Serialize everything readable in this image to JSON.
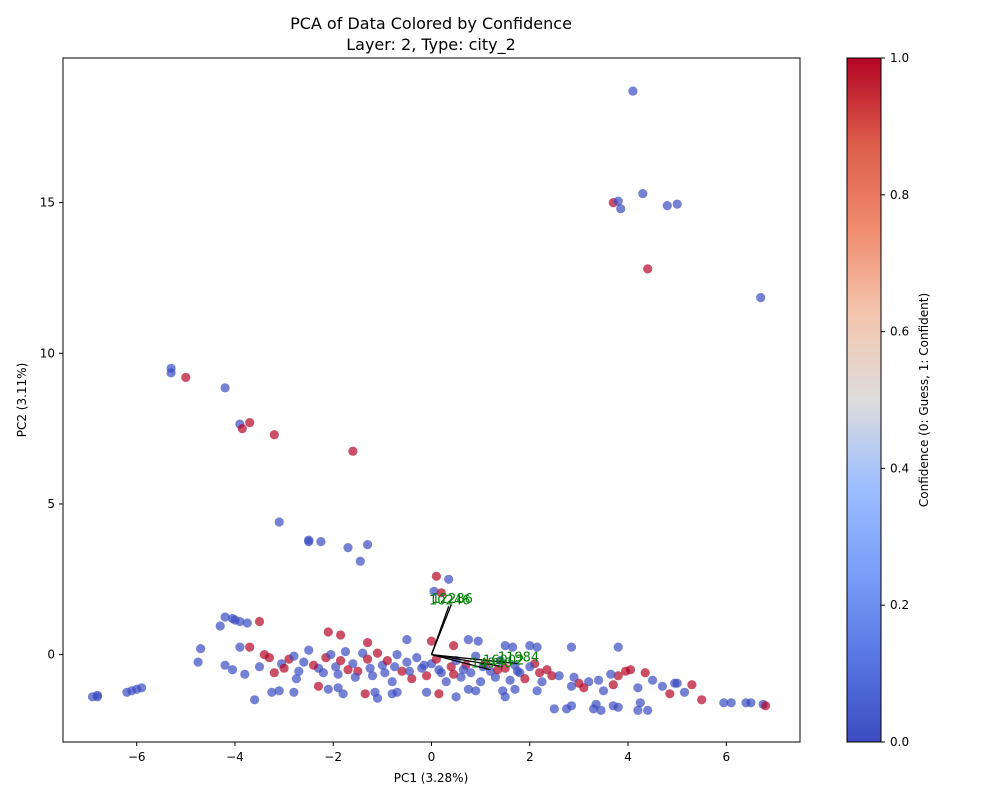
{
  "chart_data": {
    "type": "scatter",
    "title": "PCA of Data Colored by Confidence",
    "subtitle": "Layer: 2, Type: city_2",
    "xlabel": "PC1 (3.28%)",
    "ylabel": "PC2 (3.11%)",
    "xlim": [
      -7.5,
      7.5
    ],
    "ylim": [
      -2.9,
      19.8
    ],
    "xticks": [
      -6,
      -4,
      -2,
      0,
      2,
      4,
      6
    ],
    "xtick_labels": [
      "−6",
      "−4",
      "−2",
      "0",
      "2",
      "4",
      "6"
    ],
    "yticks": [
      0,
      5,
      10,
      15
    ],
    "ytick_labels": [
      "0",
      "5",
      "10",
      "15"
    ],
    "grid": false,
    "colorbar": {
      "label": "Confidence (0: Guess, 1: Confident)",
      "range": [
        0,
        1
      ],
      "ticks": [
        0.0,
        0.2,
        0.4,
        0.6,
        0.8,
        1.0
      ],
      "tick_labels": [
        "0.0",
        "0.2",
        "0.4",
        "0.6",
        "0.8",
        "1.0"
      ],
      "colormap": "coolwarm",
      "low_color": "#3b4cc0",
      "high_color": "#b40426"
    },
    "points": [
      {
        "x": 4.1,
        "y": 18.7,
        "c": 0
      },
      {
        "x": 4.3,
        "y": 15.3,
        "c": 0
      },
      {
        "x": 3.7,
        "y": 15.0,
        "c": 1
      },
      {
        "x": 3.8,
        "y": 15.05,
        "c": 0
      },
      {
        "x": 3.85,
        "y": 14.8,
        "c": 0
      },
      {
        "x": 4.8,
        "y": 14.9,
        "c": 0
      },
      {
        "x": 5.0,
        "y": 14.95,
        "c": 0
      },
      {
        "x": 4.4,
        "y": 12.8,
        "c": 1
      },
      {
        "x": 6.7,
        "y": 11.85,
        "c": 0
      },
      {
        "x": -5.3,
        "y": 9.5,
        "c": 0
      },
      {
        "x": -5.3,
        "y": 9.35,
        "c": 0
      },
      {
        "x": -5.0,
        "y": 9.2,
        "c": 1
      },
      {
        "x": -4.2,
        "y": 8.85,
        "c": 0
      },
      {
        "x": -3.9,
        "y": 7.65,
        "c": 0
      },
      {
        "x": -3.85,
        "y": 7.5,
        "c": 1
      },
      {
        "x": -3.7,
        "y": 7.7,
        "c": 1
      },
      {
        "x": -3.2,
        "y": 7.3,
        "c": 1
      },
      {
        "x": -1.6,
        "y": 6.75,
        "c": 1
      },
      {
        "x": -3.1,
        "y": 4.4,
        "c": 0
      },
      {
        "x": -2.5,
        "y": 3.8,
        "c": 0
      },
      {
        "x": -2.5,
        "y": 3.75,
        "c": 0
      },
      {
        "x": -2.25,
        "y": 3.75,
        "c": 0
      },
      {
        "x": -1.7,
        "y": 3.55,
        "c": 0
      },
      {
        "x": -1.3,
        "y": 3.65,
        "c": 0
      },
      {
        "x": -1.45,
        "y": 3.1,
        "c": 0
      },
      {
        "x": 0.1,
        "y": 2.6,
        "c": 1
      },
      {
        "x": 0.35,
        "y": 2.5,
        "c": 0
      },
      {
        "x": 0.05,
        "y": 2.1,
        "c": 0
      },
      {
        "x": 0.2,
        "y": 2.05,
        "c": 1
      },
      {
        "x": -4.2,
        "y": 1.25,
        "c": 0
      },
      {
        "x": -4.05,
        "y": 1.2,
        "c": 0
      },
      {
        "x": -4.0,
        "y": 1.15,
        "c": 0
      },
      {
        "x": -3.9,
        "y": 1.1,
        "c": 0
      },
      {
        "x": -3.75,
        "y": 1.05,
        "c": 0
      },
      {
        "x": -4.3,
        "y": 0.95,
        "c": 0
      },
      {
        "x": -3.5,
        "y": 1.1,
        "c": 1
      },
      {
        "x": -2.1,
        "y": 0.75,
        "c": 1
      },
      {
        "x": -1.85,
        "y": 0.65,
        "c": 1
      },
      {
        "x": -1.3,
        "y": 0.4,
        "c": 1
      },
      {
        "x": -0.5,
        "y": 0.5,
        "c": 0
      },
      {
        "x": 0.0,
        "y": 0.45,
        "c": 1
      },
      {
        "x": 0.45,
        "y": 0.3,
        "c": 1
      },
      {
        "x": 0.75,
        "y": 0.5,
        "c": 0
      },
      {
        "x": 0.95,
        "y": 0.45,
        "c": 0
      },
      {
        "x": 1.5,
        "y": 0.3,
        "c": 0
      },
      {
        "x": 1.65,
        "y": 0.25,
        "c": 0
      },
      {
        "x": 2.0,
        "y": 0.3,
        "c": 0
      },
      {
        "x": 2.15,
        "y": 0.25,
        "c": 0
      },
      {
        "x": 2.85,
        "y": 0.25,
        "c": 0
      },
      {
        "x": 3.8,
        "y": 0.25,
        "c": 0
      },
      {
        "x": -4.7,
        "y": 0.2,
        "c": 0
      },
      {
        "x": -4.75,
        "y": -0.25,
        "c": 0
      },
      {
        "x": -4.2,
        "y": -0.35,
        "c": 0
      },
      {
        "x": -4.05,
        "y": -0.5,
        "c": 0
      },
      {
        "x": -3.9,
        "y": 0.25,
        "c": 0
      },
      {
        "x": -3.7,
        "y": 0.25,
        "c": 1
      },
      {
        "x": -3.8,
        "y": -0.65,
        "c": 0
      },
      {
        "x": -3.6,
        "y": -1.5,
        "c": 0
      },
      {
        "x": -3.25,
        "y": -1.25,
        "c": 0
      },
      {
        "x": -3.1,
        "y": -1.2,
        "c": 0
      },
      {
        "x": -2.8,
        "y": -1.25,
        "c": 0
      },
      {
        "x": -2.75,
        "y": -0.8,
        "c": 0
      },
      {
        "x": -2.3,
        "y": -1.05,
        "c": 1
      },
      {
        "x": -2.1,
        "y": -1.15,
        "c": 0
      },
      {
        "x": -1.9,
        "y": -1.1,
        "c": 0
      },
      {
        "x": -1.8,
        "y": -1.3,
        "c": 0
      },
      {
        "x": -1.35,
        "y": -1.3,
        "c": 1
      },
      {
        "x": -1.15,
        "y": -1.25,
        "c": 0
      },
      {
        "x": -1.1,
        "y": -1.45,
        "c": 0
      },
      {
        "x": -0.8,
        "y": -1.3,
        "c": 0
      },
      {
        "x": -0.7,
        "y": -1.25,
        "c": 0
      },
      {
        "x": -0.1,
        "y": -1.25,
        "c": 0
      },
      {
        "x": 0.15,
        "y": -1.3,
        "c": 1
      },
      {
        "x": 0.5,
        "y": -1.4,
        "c": 0
      },
      {
        "x": 0.75,
        "y": -1.15,
        "c": 0
      },
      {
        "x": 0.9,
        "y": -1.2,
        "c": 0
      },
      {
        "x": 1.45,
        "y": -1.2,
        "c": 0
      },
      {
        "x": 1.5,
        "y": -1.4,
        "c": 0
      },
      {
        "x": 1.7,
        "y": -1.15,
        "c": 0
      },
      {
        "x": 2.15,
        "y": -1.2,
        "c": 0
      },
      {
        "x": 2.5,
        "y": -1.8,
        "c": 0
      },
      {
        "x": 2.75,
        "y": -1.8,
        "c": 0
      },
      {
        "x": 2.85,
        "y": -1.7,
        "c": 0
      },
      {
        "x": 3.3,
        "y": -1.8,
        "c": 0
      },
      {
        "x": 3.35,
        "y": -1.65,
        "c": 0
      },
      {
        "x": 3.45,
        "y": -1.85,
        "c": 0
      },
      {
        "x": 3.7,
        "y": -1.7,
        "c": 0
      },
      {
        "x": 3.8,
        "y": -1.75,
        "c": 0
      },
      {
        "x": 4.2,
        "y": -1.85,
        "c": 0
      },
      {
        "x": 4.25,
        "y": -1.6,
        "c": 0
      },
      {
        "x": 4.4,
        "y": -1.85,
        "c": 0
      },
      {
        "x": 4.85,
        "y": -1.3,
        "c": 1
      },
      {
        "x": 5.15,
        "y": -1.25,
        "c": 0
      },
      {
        "x": 5.3,
        "y": -1.0,
        "c": 1
      },
      {
        "x": 5.5,
        "y": -1.5,
        "c": 1
      },
      {
        "x": 5.95,
        "y": -1.6,
        "c": 0
      },
      {
        "x": 6.1,
        "y": -1.6,
        "c": 0
      },
      {
        "x": 6.4,
        "y": -1.6,
        "c": 0
      },
      {
        "x": 6.5,
        "y": -1.6,
        "c": 0
      },
      {
        "x": 6.75,
        "y": -1.65,
        "c": 0
      },
      {
        "x": 6.8,
        "y": -1.7,
        "c": 1
      },
      {
        "x": -6.9,
        "y": -1.4,
        "c": 0
      },
      {
        "x": -6.8,
        "y": -1.35,
        "c": 0
      },
      {
        "x": -6.8,
        "y": -1.4,
        "c": 0
      },
      {
        "x": -6.2,
        "y": -1.25,
        "c": 0
      },
      {
        "x": -6.1,
        "y": -1.2,
        "c": 0
      },
      {
        "x": -6.0,
        "y": -1.15,
        "c": 0
      },
      {
        "x": -5.9,
        "y": -1.1,
        "c": 0
      },
      {
        "x": 4.95,
        "y": -0.95,
        "c": 0
      },
      {
        "x": 5.0,
        "y": -0.95,
        "c": 0
      },
      {
        "x": 4.7,
        "y": -1.05,
        "c": 0
      },
      {
        "x": 4.5,
        "y": -0.85,
        "c": 0
      },
      {
        "x": 4.35,
        "y": -0.6,
        "c": 1
      },
      {
        "x": 4.2,
        "y": -1.1,
        "c": 0
      },
      {
        "x": 4.05,
        "y": -0.5,
        "c": 1
      },
      {
        "x": 3.95,
        "y": -0.55,
        "c": 1
      },
      {
        "x": 3.8,
        "y": -0.7,
        "c": 1
      },
      {
        "x": 3.65,
        "y": -0.65,
        "c": 0
      },
      {
        "x": 3.7,
        "y": -1.0,
        "c": 1
      },
      {
        "x": 3.5,
        "y": -1.2,
        "c": 0
      },
      {
        "x": 3.4,
        "y": -0.85,
        "c": 0
      },
      {
        "x": 3.2,
        "y": -0.9,
        "c": 0
      },
      {
        "x": 3.1,
        "y": -1.1,
        "c": 1
      },
      {
        "x": 3.0,
        "y": -0.95,
        "c": 1
      },
      {
        "x": 2.9,
        "y": -0.75,
        "c": 0
      },
      {
        "x": 2.85,
        "y": -1.05,
        "c": 0
      },
      {
        "x": 2.45,
        "y": -0.7,
        "c": 1
      },
      {
        "x": 2.35,
        "y": -0.5,
        "c": 1
      },
      {
        "x": 2.25,
        "y": -0.9,
        "c": 0
      },
      {
        "x": 2.1,
        "y": -0.3,
        "c": 1
      },
      {
        "x": -3.4,
        "y": 0.0,
        "c": 1
      },
      {
        "x": -3.3,
        "y": -0.1,
        "c": 1
      },
      {
        "x": -3.5,
        "y": -0.4,
        "c": 0
      },
      {
        "x": -3.2,
        "y": -0.6,
        "c": 1
      },
      {
        "x": -3.05,
        "y": -0.3,
        "c": 0
      },
      {
        "x": -2.9,
        "y": -0.15,
        "c": 1
      },
      {
        "x": -2.8,
        "y": -0.05,
        "c": 0
      },
      {
        "x": -2.6,
        "y": -0.25,
        "c": 0
      },
      {
        "x": -2.5,
        "y": 0.15,
        "c": 0
      },
      {
        "x": -2.3,
        "y": -0.45,
        "c": 0
      },
      {
        "x": -2.15,
        "y": -0.1,
        "c": 1
      },
      {
        "x": -2.05,
        "y": 0.0,
        "c": 0
      },
      {
        "x": -1.95,
        "y": -0.4,
        "c": 0
      },
      {
        "x": -1.85,
        "y": -0.2,
        "c": 1
      },
      {
        "x": -1.75,
        "y": 0.1,
        "c": 0
      },
      {
        "x": -1.6,
        "y": -0.3,
        "c": 0
      },
      {
        "x": -1.5,
        "y": -0.55,
        "c": 1
      },
      {
        "x": -1.4,
        "y": 0.05,
        "c": 0
      },
      {
        "x": -1.3,
        "y": -0.15,
        "c": 1
      },
      {
        "x": -1.2,
        "y": -0.7,
        "c": 0
      },
      {
        "x": -1.1,
        "y": 0.05,
        "c": 1
      },
      {
        "x": -1.0,
        "y": -0.35,
        "c": 0
      },
      {
        "x": -0.9,
        "y": -0.2,
        "c": 1
      },
      {
        "x": -0.8,
        "y": -0.9,
        "c": 0
      },
      {
        "x": -0.7,
        "y": 0.0,
        "c": 0
      },
      {
        "x": -0.6,
        "y": -0.55,
        "c": 1
      },
      {
        "x": -0.5,
        "y": -0.25,
        "c": 0
      },
      {
        "x": -0.4,
        "y": -0.8,
        "c": 1
      },
      {
        "x": -0.3,
        "y": -0.1,
        "c": 0
      },
      {
        "x": -0.2,
        "y": -0.45,
        "c": 0
      },
      {
        "x": -0.1,
        "y": -0.7,
        "c": 1
      },
      {
        "x": 0.0,
        "y": -0.3,
        "c": 0
      },
      {
        "x": 0.1,
        "y": -0.15,
        "c": 1
      },
      {
        "x": 0.2,
        "y": -0.6,
        "c": 0
      },
      {
        "x": 0.3,
        "y": -0.9,
        "c": 0
      },
      {
        "x": 0.4,
        "y": -0.4,
        "c": 1
      },
      {
        "x": 0.5,
        "y": -0.2,
        "c": 0
      },
      {
        "x": 0.6,
        "y": -0.75,
        "c": 0
      },
      {
        "x": 0.7,
        "y": -0.35,
        "c": 1
      },
      {
        "x": 0.8,
        "y": -0.6,
        "c": 0
      },
      {
        "x": 0.9,
        "y": -0.05,
        "c": 0
      },
      {
        "x": 1.0,
        "y": -0.9,
        "c": 0
      },
      {
        "x": 1.1,
        "y": -0.3,
        "c": 1
      },
      {
        "x": 1.2,
        "y": -0.55,
        "c": 0
      },
      {
        "x": 1.3,
        "y": -0.75,
        "c": 0
      },
      {
        "x": 1.4,
        "y": -0.2,
        "c": 0
      },
      {
        "x": 1.5,
        "y": -0.45,
        "c": 1
      },
      {
        "x": 1.6,
        "y": -0.85,
        "c": 0
      },
      {
        "x": 1.7,
        "y": -0.35,
        "c": 0
      },
      {
        "x": 1.8,
        "y": -0.6,
        "c": 0
      },
      {
        "x": 1.9,
        "y": -0.8,
        "c": 1
      },
      {
        "x": 2.0,
        "y": -0.4,
        "c": 0
      },
      {
        "x": -3.0,
        "y": -0.45,
        "c": 1
      },
      {
        "x": -2.7,
        "y": -0.55,
        "c": 0
      },
      {
        "x": -2.4,
        "y": -0.35,
        "c": 1
      },
      {
        "x": -2.2,
        "y": -0.6,
        "c": 0
      },
      {
        "x": -1.9,
        "y": -0.65,
        "c": 0
      },
      {
        "x": -1.7,
        "y": -0.5,
        "c": 1
      },
      {
        "x": -1.55,
        "y": -0.75,
        "c": 0
      },
      {
        "x": -1.25,
        "y": -0.45,
        "c": 0
      },
      {
        "x": -0.95,
        "y": -0.6,
        "c": 0
      },
      {
        "x": -0.75,
        "y": -0.4,
        "c": 0
      },
      {
        "x": -0.45,
        "y": -0.55,
        "c": 0
      },
      {
        "x": -0.15,
        "y": -0.35,
        "c": 0
      },
      {
        "x": 0.15,
        "y": -0.5,
        "c": 0
      },
      {
        "x": 0.45,
        "y": -0.65,
        "c": 1
      },
      {
        "x": 0.65,
        "y": -0.5,
        "c": 0
      },
      {
        "x": 1.05,
        "y": -0.4,
        "c": 0
      },
      {
        "x": 1.35,
        "y": -0.5,
        "c": 1
      },
      {
        "x": 1.75,
        "y": -0.55,
        "c": 0
      },
      {
        "x": 2.2,
        "y": -0.6,
        "c": 1
      },
      {
        "x": 2.6,
        "y": -0.7,
        "c": 0
      }
    ],
    "arrows": [
      {
        "label": "12286",
        "x": 0.4,
        "y": 1.65
      },
      {
        "label": "10246",
        "x": 0.35,
        "y": 1.6
      },
      {
        "label": "11984",
        "x": 1.75,
        "y": -0.3
      },
      {
        "label": "16002",
        "x": 1.45,
        "y": -0.4
      },
      {
        "label": "14990",
        "x": 1.2,
        "y": -0.5
      }
    ]
  }
}
